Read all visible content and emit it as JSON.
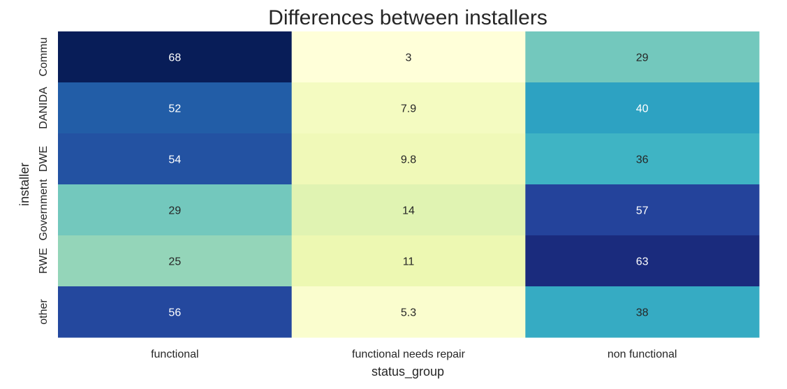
{
  "chart_data": {
    "type": "heatmap",
    "title": "Differences between installers",
    "xlabel": "status_group",
    "ylabel": "installer",
    "x_categories": [
      "functional",
      "functional needs repair",
      "non functional"
    ],
    "y_categories": [
      "Commu",
      "DANIDA",
      "DWE",
      "Government",
      "RWE",
      "other"
    ],
    "values": [
      [
        68,
        3,
        29
      ],
      [
        52,
        7.9,
        40
      ],
      [
        54,
        9.8,
        36
      ],
      [
        29,
        14,
        57
      ],
      [
        25,
        11,
        63
      ],
      [
        56,
        5.3,
        38
      ]
    ],
    "cell_labels": [
      [
        "68",
        "3",
        "29"
      ],
      [
        "52",
        "7.9",
        "40"
      ],
      [
        "54",
        "9.8",
        "36"
      ],
      [
        "29",
        "14",
        "57"
      ],
      [
        "25",
        "11",
        "63"
      ],
      [
        "56",
        "5.3",
        "38"
      ]
    ],
    "colormap": "YlGnBu",
    "vmin": 3,
    "vmax": 68,
    "colorbar": false
  }
}
